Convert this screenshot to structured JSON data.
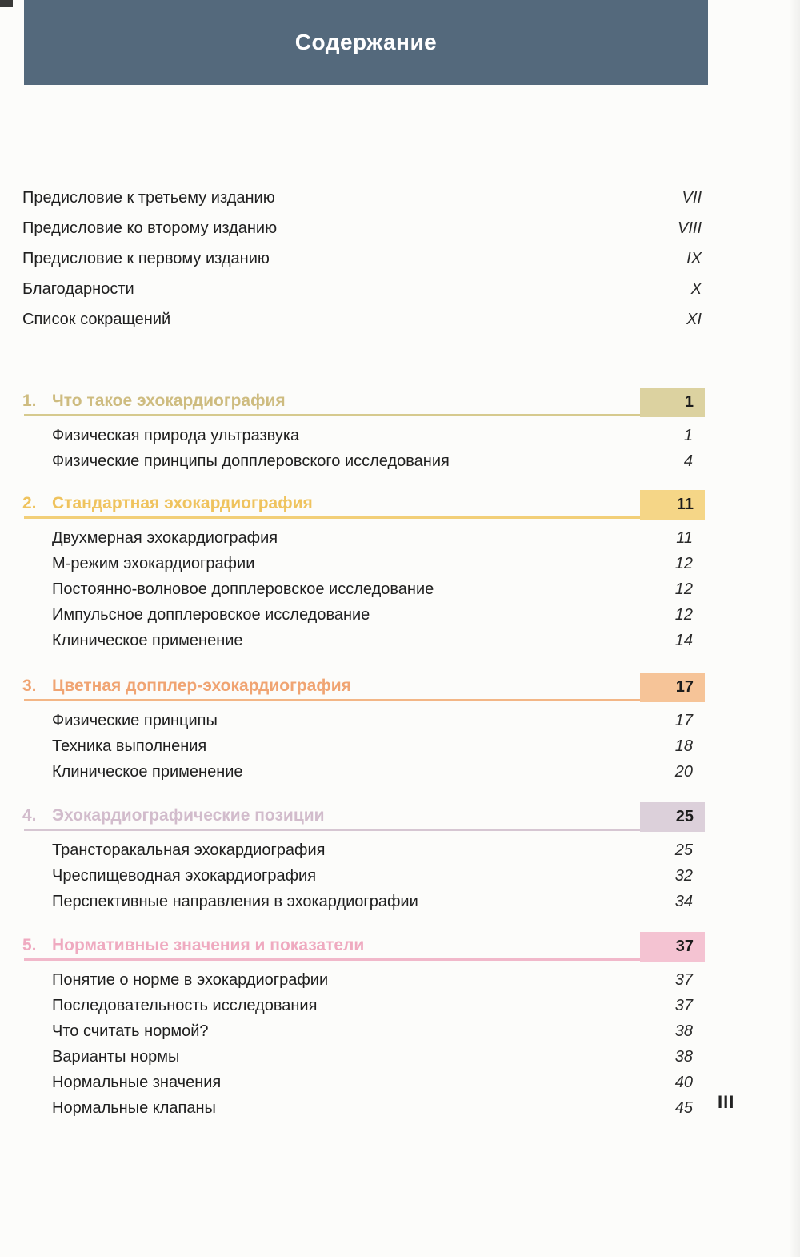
{
  "page": {
    "title": "Содержание",
    "folio": "III"
  },
  "colors": {
    "header_band": "#54697c",
    "header_text": "#ffffff",
    "body_text": "#1f1f1f"
  },
  "front_matter": [
    {
      "label": "Предисловие к третьему изданию",
      "page": "VII"
    },
    {
      "label": "Предисловие ко второму изданию",
      "page": "VIII"
    },
    {
      "label": "Предисловие к первому изданию",
      "page": "IX"
    },
    {
      "label": "Благодарности",
      "page": "X"
    },
    {
      "label": "Список сокращений",
      "page": "XI"
    }
  ],
  "chapters": [
    {
      "number": "1.",
      "title": "Что такое эхокардиография",
      "page": "1",
      "colors": {
        "heading": "#cebc80",
        "box": "#dcd2a0",
        "rule": "#d6ca8e"
      },
      "sections": [
        {
          "label": "Физическая природа ультразвука",
          "page": "1"
        },
        {
          "label": "Физические принципы допплеровского исследования",
          "page": "4"
        }
      ]
    },
    {
      "number": "2.",
      "title": "Стандартная эхокардиография",
      "page": "11",
      "colors": {
        "heading": "#efc35e",
        "box": "#f5d687",
        "rule": "#f2cf78"
      },
      "sections": [
        {
          "label": "Двухмерная эхокардиография",
          "page": "11"
        },
        {
          "label": "М-режим эхокардиографии",
          "page": "12"
        },
        {
          "label": "Постоянно-волновое допплеровское исследование",
          "page": "12"
        },
        {
          "label": "Импульсное допплеровское исследование",
          "page": "12"
        },
        {
          "label": "Клиническое применение",
          "page": "14"
        }
      ]
    },
    {
      "number": "3.",
      "title": "Цветная допплер-эхокардиография",
      "page": "17",
      "colors": {
        "heading": "#f0a472",
        "box": "#f6c498",
        "rule": "#f3b686"
      },
      "sections": [
        {
          "label": "Физические принципы",
          "page": "17"
        },
        {
          "label": "Техника выполнения",
          "page": "18"
        },
        {
          "label": "Клиническое применение",
          "page": "20"
        }
      ]
    },
    {
      "number": "4.",
      "title": "Эхокардиографические позиции",
      "page": "25",
      "colors": {
        "heading": "#d2bccc",
        "box": "#dcd0da",
        "rule": "#d6c6d2"
      },
      "sections": [
        {
          "label": "Трансторакальная эхокардиография",
          "page": "25"
        },
        {
          "label": "Чреспищеводная эхокардиография",
          "page": "32"
        },
        {
          "label": "Перспективные направления в эхокардиографии",
          "page": "34"
        }
      ]
    },
    {
      "number": "5.",
      "title": "Нормативные значения и показатели",
      "page": "37",
      "colors": {
        "heading": "#efaac0",
        "box": "#f4c3d2",
        "rule": "#f1b8ca"
      },
      "sections": [
        {
          "label": "Понятие о норме в эхокардиографии",
          "page": "37"
        },
        {
          "label": "Последовательность исследования",
          "page": "37"
        },
        {
          "label": "Что считать нормой?",
          "page": "38"
        },
        {
          "label": "Варианты нормы",
          "page": "38"
        },
        {
          "label": "Нормальные значения",
          "page": "40"
        },
        {
          "label": "Нормальные клапаны",
          "page": "45"
        }
      ]
    }
  ]
}
